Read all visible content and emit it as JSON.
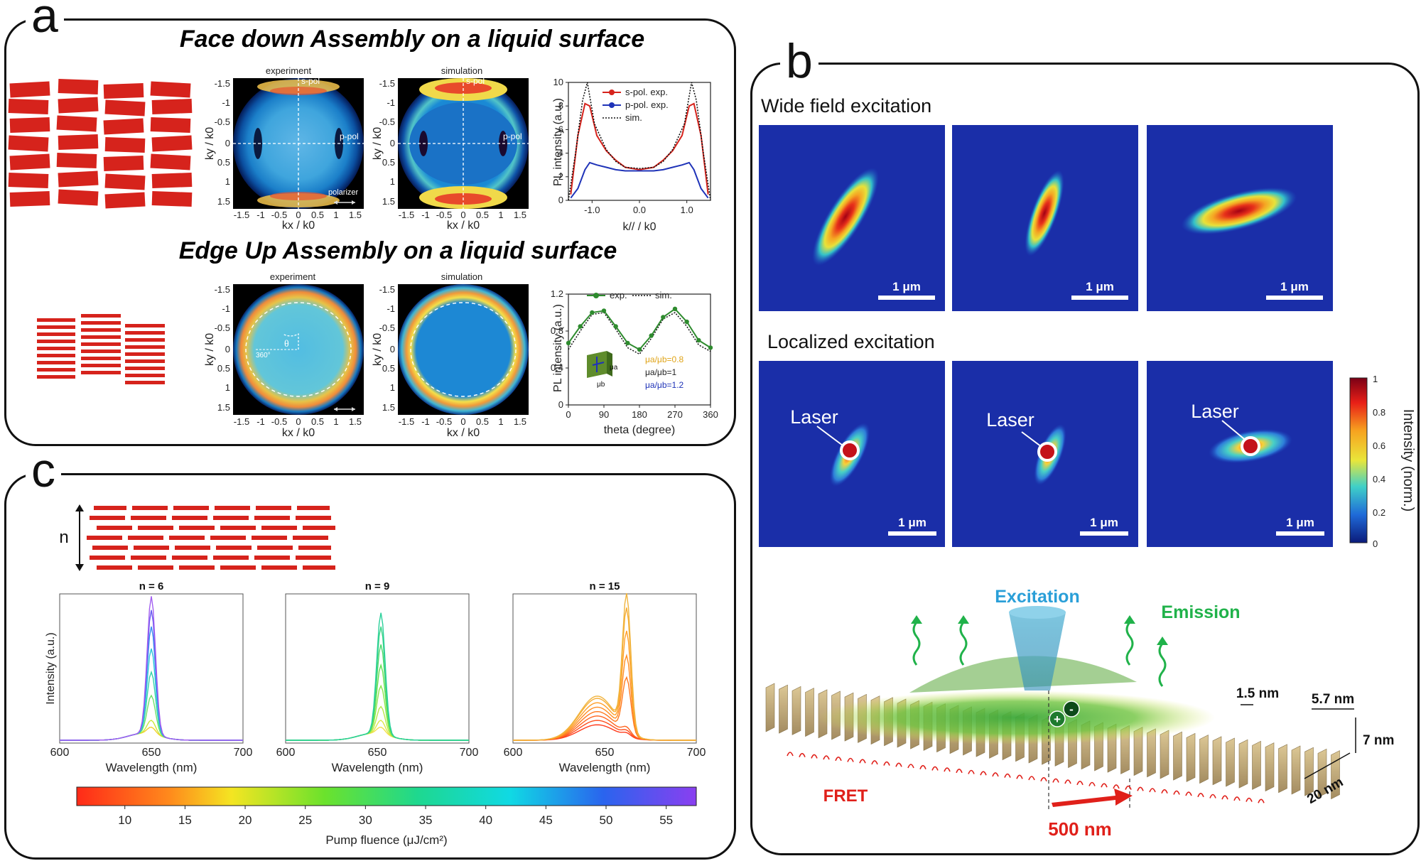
{
  "panels": {
    "a": {
      "label": "a",
      "title_face_down": "Face down Assembly on a liquid surface",
      "title_edge_up": "Edge Up Assembly on a liquid surface",
      "map_experiment": "experiment",
      "map_simulation": "simulation",
      "s_pol": "s-pol",
      "p_pol": "p-pol",
      "polarizer": "polarizer",
      "theta_symbol": "θ",
      "angle_360": "360°",
      "ky_label": "ky / k0",
      "kx_label": "kx / k0",
      "map_ticks": [
        "-1.5",
        "-1",
        "-0.5",
        "0",
        "0.5",
        "1",
        "1.5"
      ],
      "chart_top": {
        "ylabel": "PL intensity (a.u.)",
        "xlabel": "k// / k0",
        "yticks": [
          "0",
          "2",
          "4",
          "6",
          "8",
          "10"
        ],
        "xticks": [
          "-1.0",
          "0.0",
          "1.0"
        ],
        "legend": [
          "s-pol. exp.",
          "p-pol. exp.",
          "sim."
        ]
      },
      "chart_bottom": {
        "ylabel": "PL intensity (a.u.)",
        "xlabel": "theta (degree)",
        "yticks": [
          "0",
          "0.4",
          "0.8",
          "1.2"
        ],
        "xticks": [
          "0",
          "90",
          "180",
          "270",
          "360"
        ],
        "legend": [
          "exp.",
          "sim."
        ],
        "ratios": [
          "μa/μb=0.8",
          "μa/μb=1",
          "μa/μb=1.2"
        ],
        "inset_a": "μa",
        "inset_b": "μb"
      }
    },
    "b": {
      "label": "b",
      "wide_field": "Wide field excitation",
      "localized": "Localized excitation",
      "scale": "1 μm",
      "laser": "Laser",
      "colorbar_label": "Intensity (norm.)",
      "colorbar_ticks": [
        "1",
        "0.8",
        "0.6",
        "0.4",
        "0.2",
        "0"
      ],
      "excitation": "Excitation",
      "emission": "Emission",
      "fret": "FRET",
      "dim_500": "500 nm",
      "dim_15": "1.5 nm",
      "dim_57": "5.7 nm",
      "dim_7": "7 nm",
      "dim_20": "20 nm",
      "plus": "+",
      "minus": "-"
    },
    "c": {
      "label": "c",
      "n_label": "n",
      "ylabel": "Intensity (a.u.)",
      "xlabel": "Wavelength (nm)",
      "xticks": [
        "600",
        "650",
        "700"
      ],
      "spectra_titles": [
        "n = 6",
        "n = 9",
        "n = 15"
      ],
      "colorbar_ticks": [
        "10",
        "15",
        "20",
        "25",
        "30",
        "35",
        "40",
        "45",
        "50",
        "55"
      ],
      "colorbar_label": "Pump fluence (μJ/cm²)"
    }
  },
  "chart_data": [
    {
      "type": "line",
      "title": "",
      "xlabel": "k// / k0",
      "ylabel": "PL intensity (a.u.)",
      "xlim": [
        -1.5,
        1.5
      ],
      "ylim": [
        0,
        10
      ],
      "series": [
        {
          "name": "s-pol. exp.",
          "x": [
            -1.45,
            -1.3,
            -1.15,
            -1.05,
            -0.9,
            -0.7,
            -0.5,
            -0.3,
            0,
            0.3,
            0.5,
            0.7,
            0.9,
            1.05,
            1.15,
            1.3,
            1.45
          ],
          "y": [
            0.5,
            5.5,
            8.2,
            8.0,
            5.5,
            4.2,
            3.4,
            2.8,
            2.6,
            2.8,
            3.4,
            4.2,
            5.5,
            8.0,
            8.2,
            5.5,
            0.5
          ]
        },
        {
          "name": "p-pol. exp.",
          "x": [
            -1.45,
            -1.3,
            -1.15,
            -1.05,
            -0.9,
            -0.7,
            -0.5,
            -0.3,
            0,
            0.3,
            0.5,
            0.7,
            0.9,
            1.05,
            1.15,
            1.3,
            1.45
          ],
          "y": [
            0.2,
            1.0,
            2.6,
            3.2,
            3.0,
            2.8,
            2.6,
            2.5,
            2.5,
            2.5,
            2.6,
            2.8,
            3.0,
            3.2,
            2.6,
            1.0,
            0.2
          ]
        },
        {
          "name": "sim.",
          "x": [
            -1.5,
            -1.35,
            -1.2,
            -1.1,
            -0.95,
            -0.7,
            -0.5,
            -0.3,
            0,
            0.3,
            0.5,
            0.7,
            0.95,
            1.1,
            1.2,
            1.35,
            1.5
          ],
          "y": [
            0,
            4.0,
            8.5,
            10.0,
            6.5,
            4.3,
            3.3,
            2.8,
            2.7,
            2.8,
            3.3,
            4.3,
            6.5,
            10.0,
            8.5,
            4.0,
            0
          ]
        }
      ]
    },
    {
      "type": "line",
      "title": "",
      "xlabel": "theta (degree)",
      "ylabel": "PL intensity (a.u.)",
      "xlim": [
        0,
        360
      ],
      "ylim": [
        0,
        1.2
      ],
      "series": [
        {
          "name": "exp.",
          "x": [
            0,
            30,
            60,
            90,
            120,
            150,
            180,
            210,
            240,
            270,
            300,
            330,
            360
          ],
          "y": [
            0.67,
            0.85,
            1.0,
            1.02,
            0.85,
            0.67,
            0.6,
            0.75,
            0.95,
            1.04,
            0.9,
            0.7,
            0.62
          ]
        },
        {
          "name": "sim.",
          "x": [
            0,
            30,
            60,
            90,
            120,
            150,
            180,
            210,
            240,
            270,
            300,
            330,
            360
          ],
          "y": [
            0.6,
            0.8,
            0.98,
            1.0,
            0.82,
            0.62,
            0.55,
            0.72,
            0.93,
            1.0,
            0.85,
            0.65,
            0.58
          ]
        }
      ]
    },
    {
      "type": "line",
      "title": "n = 6",
      "xlabel": "Wavelength (nm)",
      "ylabel": "Intensity (a.u.)",
      "xlim": [
        600,
        700
      ],
      "peak_nm": 650,
      "series": [
        {
          "name": "fluence 10",
          "peak": 0.05
        },
        {
          "name": "fluence 20",
          "peak": 0.1
        },
        {
          "name": "fluence 30",
          "peak": 0.28
        },
        {
          "name": "fluence 35",
          "peak": 0.45
        },
        {
          "name": "fluence 40",
          "peak": 0.62
        },
        {
          "name": "fluence 45",
          "peak": 0.78
        },
        {
          "name": "fluence 50",
          "peak": 0.9
        },
        {
          "name": "fluence 55",
          "peak": 1.0
        }
      ]
    },
    {
      "type": "line",
      "title": "n = 9",
      "xlabel": "Wavelength (nm)",
      "ylabel": "Intensity (a.u.)",
      "xlim": [
        600,
        700
      ],
      "peak_nm": 652,
      "series": [
        {
          "name": "fluence 10",
          "peak": 0.05
        },
        {
          "name": "fluence 15",
          "peak": 0.1
        },
        {
          "name": "fluence 20",
          "peak": 0.2
        },
        {
          "name": "fluence 25",
          "peak": 0.35
        },
        {
          "name": "fluence 28",
          "peak": 0.5
        },
        {
          "name": "fluence 30",
          "peak": 0.65
        },
        {
          "name": "fluence 33",
          "peak": 0.78
        },
        {
          "name": "fluence 35",
          "peak": 0.88
        }
      ]
    },
    {
      "type": "line",
      "title": "n = 15",
      "xlabel": "Wavelength (nm)",
      "ylabel": "Intensity (a.u.)",
      "xlim": [
        600,
        700
      ],
      "peak_nm": 662,
      "series": [
        {
          "name": "fluence 6",
          "peak": 0.1
        },
        {
          "name": "fluence 8",
          "peak": 0.14
        },
        {
          "name": "fluence 10",
          "peak": 0.2
        },
        {
          "name": "fluence 12",
          "peak": 0.4
        },
        {
          "name": "fluence 14",
          "peak": 0.55
        },
        {
          "name": "fluence 16",
          "peak": 0.72
        },
        {
          "name": "fluence 18",
          "peak": 0.88
        },
        {
          "name": "fluence 20",
          "peak": 0.98
        }
      ]
    }
  ]
}
